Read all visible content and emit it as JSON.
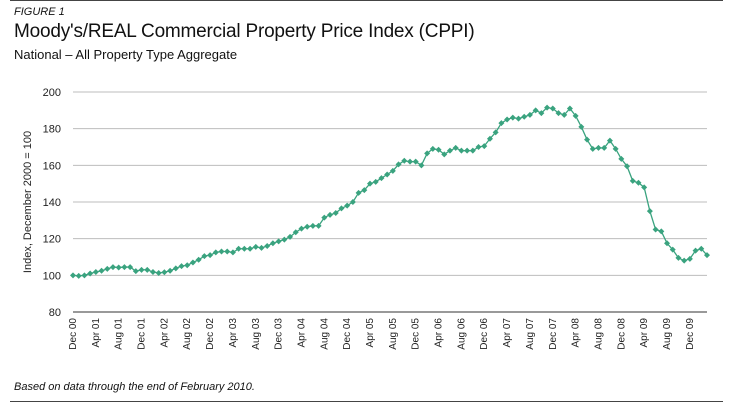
{
  "figure_label": "FIGURE 1",
  "title": "Moody's/REAL Commercial Property Price Index (CPPI)",
  "subtitle": "National – All Property Type Aggregate",
  "footnote": "Based on data through the end of February 2010.",
  "chart_data": {
    "type": "line",
    "title": "Moody's/REAL Commercial Property Price Index (CPPI)",
    "subtitle": "National – All Property Type Aggregate",
    "ylabel": "Index, December 2000 = 100",
    "xlabel": "",
    "ylim": [
      80,
      200
    ],
    "yticks": [
      80,
      100,
      120,
      140,
      160,
      180,
      200
    ],
    "grid": true,
    "marker": "diamond",
    "line_color": "#3aa37f",
    "x_ticks": [
      "Dec 00",
      "Apr 01",
      "Aug 01",
      "Dec 01",
      "Apr 02",
      "Aug 02",
      "Dec 02",
      "Apr 03",
      "Aug 03",
      "Dec 03",
      "Apr 04",
      "Aug 04",
      "Dec 04",
      "Apr 05",
      "Aug 05",
      "Dec 05",
      "Apr 06",
      "Aug 06",
      "Dec 06",
      "Apr 07",
      "Aug 07",
      "Dec 07",
      "Apr 08",
      "Aug 08",
      "Dec 08",
      "Apr 09",
      "Aug 09",
      "Dec 09"
    ],
    "x_start": "Dec 2000",
    "x_end": "Feb 2010",
    "frequency": "monthly",
    "series": [
      {
        "values": [
          100,
          99.7,
          100,
          101,
          101.8,
          102.5,
          103.5,
          104.5,
          104.3,
          104.5,
          104.5,
          102.3,
          103,
          103,
          101.8,
          101.3,
          101.7,
          102.5,
          103.8,
          105,
          105.5,
          107,
          108.5,
          110.5,
          111,
          112.5,
          113,
          113,
          112.5,
          114.5,
          114.5,
          114.5,
          115.5,
          115,
          116,
          117.5,
          118.5,
          119.5,
          121,
          123.5,
          125.5,
          126.5,
          127,
          127,
          131.5,
          133,
          134,
          136.5,
          138,
          140,
          145,
          146.5,
          150,
          151,
          153,
          155,
          157,
          160.5,
          162.5,
          162,
          162,
          160,
          166.5,
          169,
          168.5,
          166,
          168,
          169.5,
          168,
          168,
          168,
          170,
          170.5,
          174.5,
          178,
          183,
          185,
          186,
          185.5,
          186.5,
          187.5,
          190,
          188.5,
          191.5,
          191,
          188.5,
          187.5,
          191,
          187,
          181,
          174,
          169,
          169.5,
          169.5,
          173.5,
          169,
          163.5,
          159.5,
          151.5,
          150.5,
          148,
          135,
          125,
          124,
          117.5,
          114,
          109.5,
          108,
          109,
          113.5,
          114.5,
          111
        ]
      }
    ]
  }
}
